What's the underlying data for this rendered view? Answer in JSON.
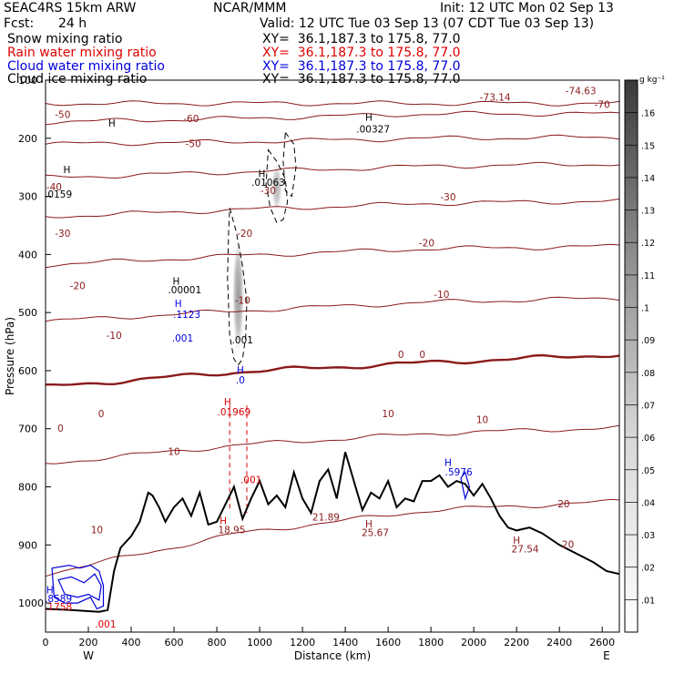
{
  "header": {
    "model": "SEAC4RS 15km ARW",
    "center": "NCAR/MMM",
    "init": "Init: 12 UTC Mon 02 Sep 13",
    "fcst_label": "Fcst:",
    "fcst_value": "24 h",
    "valid": "Valid: 12 UTC Tue 03 Sep 13 (07 CDT Tue 03 Sep 13)"
  },
  "legend": [
    {
      "name": "Snow mixing ratio",
      "xy": "XY=  36.1,187.3 to 175.8, 77.0",
      "color": "#000000"
    },
    {
      "name": "Rain water mixing ratio",
      "xy": "XY=  36.1,187.3 to 175.8, 77.0",
      "color": "#dd0000"
    },
    {
      "name": "Cloud water mixing ratio",
      "xy": "XY=  36.1,187.3 to 175.8, 77.0",
      "color": "#0000dd"
    },
    {
      "name": "Cloud ice mixing ratio",
      "xy": "XY=  36.1,187.3 to 175.8, 77.0",
      "color": "#000000"
    }
  ],
  "chart_data": {
    "type": "contour",
    "xlabel": "Distance (km)",
    "ylabel": "Pressure (hPa)",
    "xlim": [
      0,
      2680
    ],
    "ylim": [
      1050,
      100
    ],
    "x_ticks": [
      0,
      200,
      400,
      600,
      800,
      1000,
      1200,
      1400,
      1600,
      1800,
      2000,
      2200,
      2400,
      2600
    ],
    "y_ticks": [
      200,
      300,
      400,
      500,
      600,
      700,
      800,
      900,
      1000
    ],
    "y_tick_labels": [
      "200",
      "300",
      "400",
      "500",
      "600",
      "700",
      "800",
      "900",
      "1000"
    ],
    "y_top_label": "100",
    "endpoints": {
      "left": "W",
      "right": "E"
    },
    "colorbar": {
      "unit": "g kg⁻¹",
      "ticks": [
        ".16",
        ".15",
        ".14",
        ".13",
        ".12",
        ".11",
        ".1",
        ".09",
        ".08",
        ".07",
        ".06",
        ".05",
        ".04",
        ".03",
        ".02",
        ".01"
      ],
      "min": 0.0,
      "max": 0.17
    },
    "temperature_levels": [
      {
        "level": -70,
        "pressure": [
          140,
          140,
          140,
          140
        ]
      },
      {
        "level": -60,
        "pressure": [
          172,
          166,
          158,
          158
        ]
      },
      {
        "level": -50,
        "pressure": [
          210,
          206,
          200,
          198
        ]
      },
      {
        "level": -40,
        "pressure": [
          268,
          258,
          248,
          244
        ]
      },
      {
        "level": -30,
        "pressure": [
          335,
          323,
          312,
          308
        ]
      },
      {
        "level": -20,
        "pressure": [
          418,
          402,
          390,
          386
        ]
      },
      {
        "level": -10,
        "pressure": [
          515,
          497,
          482,
          475
        ]
      },
      {
        "level": 0,
        "pressure": [
          628,
          602,
          586,
          572
        ]
      },
      {
        "level": 10,
        "pressure": [
          760,
          728,
          708,
          698
        ]
      },
      {
        "level": 20,
        "pressure": [
          950,
          880,
          840,
          825
        ]
      }
    ],
    "temperature_profile_x": [
      0,
      900,
      1800,
      2680
    ],
    "terrain": {
      "x": [
        0,
        120,
        200,
        250,
        290,
        300,
        320,
        350,
        400,
        440,
        480,
        500,
        530,
        560,
        600,
        640,
        680,
        720,
        760,
        800,
        840,
        880,
        920,
        960,
        1000,
        1040,
        1080,
        1120,
        1160,
        1200,
        1240,
        1280,
        1320,
        1360,
        1400,
        1440,
        1480,
        1520,
        1560,
        1600,
        1640,
        1680,
        1720,
        1760,
        1800,
        1840,
        1880,
        1920,
        1960,
        2000,
        2040,
        2080,
        2120,
        2160,
        2200,
        2260,
        2320,
        2400,
        2480,
        2560,
        2620,
        2680
      ],
      "y": [
        1010,
        1012,
        1014,
        1015,
        1012,
        990,
        945,
        905,
        885,
        860,
        810,
        815,
        835,
        860,
        835,
        820,
        850,
        810,
        865,
        860,
        830,
        800,
        855,
        820,
        790,
        830,
        815,
        835,
        775,
        820,
        845,
        790,
        770,
        820,
        740,
        790,
        840,
        810,
        820,
        790,
        835,
        820,
        825,
        790,
        790,
        780,
        800,
        790,
        795,
        815,
        795,
        820,
        850,
        870,
        875,
        870,
        880,
        900,
        915,
        930,
        945,
        950
      ]
    },
    "snow_contours": [
      {
        "label": ".001",
        "x": [
          860,
          890,
          920,
          940,
          935,
          920,
          900,
          880,
          860,
          850,
          855,
          860
        ],
        "y": [
          320,
          360,
          420,
          480,
          540,
          580,
          590,
          580,
          540,
          440,
          360,
          320
        ]
      },
      {
        "label": ".001",
        "x": [
          1040,
          1080,
          1120,
          1130,
          1110,
          1080,
          1050,
          1030,
          1040
        ],
        "y": [
          220,
          240,
          270,
          310,
          340,
          345,
          320,
          280,
          220
        ]
      }
    ],
    "ice_contours": [
      {
        "label": ".001",
        "x": [
          1120,
          1160,
          1170,
          1150,
          1120,
          1110,
          1120
        ],
        "y": [
          190,
          210,
          250,
          300,
          290,
          240,
          190
        ]
      }
    ],
    "rain_lines": [
      {
        "x": [
          860,
          860
        ],
        "y": [
          660,
          840
        ]
      },
      {
        "x": [
          940,
          940
        ],
        "y": [
          660,
          845
        ]
      }
    ],
    "cloud_contours": [
      {
        "x": [
          30,
          110,
          160,
          210,
          250,
          270,
          270,
          240,
          210,
          150,
          90,
          40,
          30
        ],
        "y": [
          940,
          935,
          940,
          935,
          945,
          970,
          1005,
          1010,
          990,
          1000,
          1000,
          990,
          940
        ]
      },
      {
        "x": [
          60,
          120,
          180,
          230,
          260,
          250,
          200,
          150,
          90,
          60
        ],
        "y": [
          960,
          955,
          965,
          950,
          970,
          995,
          985,
          990,
          985,
          960
        ]
      },
      {
        "x": [
          1940,
          1960,
          1980,
          1960,
          1940
        ],
        "y": [
          785,
          775,
          800,
          820,
          785
        ]
      }
    ],
    "cloud_shade": [
      {
        "x": 900,
        "p": 470,
        "rx": 30,
        "rp": 110,
        "intensity": 0.6
      },
      {
        "x": 1080,
        "p": 285,
        "rx": 28,
        "rp": 45,
        "intensity": 0.45
      }
    ],
    "annotations": [
      {
        "text": "-70",
        "x": 2600,
        "p": 148,
        "color": "#8b1a1a"
      },
      {
        "text": "-73.14",
        "x": 2100,
        "p": 135,
        "color": "#8b1a1a"
      },
      {
        "text": "-74.63",
        "x": 2500,
        "p": 124,
        "color": "#8b1a1a"
      },
      {
        "text": "-50",
        "x": 80,
        "p": 165,
        "color": "#8b1a1a"
      },
      {
        "text": "-60",
        "x": 680,
        "p": 172,
        "color": "#8b1a1a"
      },
      {
        "text": "-50",
        "x": 690,
        "p": 215,
        "color": "#8b1a1a"
      },
      {
        "text": "-40",
        "x": 40,
        "p": 290,
        "color": "#8b1a1a"
      },
      {
        "text": "-30",
        "x": 1040,
        "p": 296,
        "color": "#8b1a1a"
      },
      {
        "text": "-30",
        "x": 1880,
        "p": 307,
        "color": "#8b1a1a"
      },
      {
        "text": "-30",
        "x": 80,
        "p": 370,
        "color": "#8b1a1a"
      },
      {
        "text": "-20",
        "x": 930,
        "p": 370,
        "color": "#8b1a1a"
      },
      {
        "text": "-20",
        "x": 1780,
        "p": 386,
        "color": "#8b1a1a"
      },
      {
        "text": "-20",
        "x": 150,
        "p": 460,
        "color": "#8b1a1a"
      },
      {
        "text": "-10",
        "x": 920,
        "p": 485,
        "color": "#8b1a1a"
      },
      {
        "text": "-10",
        "x": 1850,
        "p": 475,
        "color": "#8b1a1a"
      },
      {
        "text": "-10",
        "x": 320,
        "p": 545,
        "color": "#8b1a1a"
      },
      {
        "text": "0",
        "x": 1660,
        "p": 578,
        "color": "#8b1a1a"
      },
      {
        "text": "0",
        "x": 1760,
        "p": 578,
        "color": "#8b1a1a"
      },
      {
        "text": "0",
        "x": 70,
        "p": 705,
        "color": "#8b1a1a"
      },
      {
        "text": "0",
        "x": 260,
        "p": 680,
        "color": "#8b1a1a"
      },
      {
        "text": "10",
        "x": 1600,
        "p": 680,
        "color": "#8b1a1a"
      },
      {
        "text": "10",
        "x": 2040,
        "p": 690,
        "color": "#8b1a1a"
      },
      {
        "text": "10",
        "x": 600,
        "p": 745,
        "color": "#8b1a1a"
      },
      {
        "text": "10",
        "x": 240,
        "p": 880,
        "color": "#8b1a1a"
      },
      {
        "text": "20",
        "x": 2420,
        "p": 835,
        "color": "#8b1a1a"
      },
      {
        "text": "20",
        "x": 2440,
        "p": 905,
        "color": "#8b1a1a"
      },
      {
        "text": "H",
        "x": 1510,
        "p": 170,
        "color": "#000000"
      },
      {
        "text": ".00327",
        "x": 1530,
        "p": 190,
        "color": "#000000"
      },
      {
        "text": "H",
        "x": 1010,
        "p": 267,
        "color": "#000000"
      },
      {
        "text": ".01063",
        "x": 1040,
        "p": 282,
        "color": "#000000"
      },
      {
        "text": "H",
        "x": 610,
        "p": 452,
        "color": "#000000"
      },
      {
        "text": ".00001",
        "x": 650,
        "p": 467,
        "color": "#000000"
      },
      {
        "text": "H",
        "x": 620,
        "p": 490,
        "color": "#0000dd"
      },
      {
        "text": ".1123",
        "x": 660,
        "p": 509,
        "color": "#0000dd"
      },
      {
        "text": ".001",
        "x": 640,
        "p": 550,
        "color": "#0000dd"
      },
      {
        "text": ".001",
        "x": 920,
        "p": 553,
        "color": "#000000"
      },
      {
        "text": "H",
        "x": 910,
        "p": 605,
        "color": "#0000dd"
      },
      {
        "text": ".0",
        "x": 910,
        "p": 622,
        "color": "#0000dd"
      },
      {
        "text": "H",
        "x": 850,
        "p": 660,
        "color": "#dd0000"
      },
      {
        "text": ".01969",
        "x": 880,
        "p": 677,
        "color": "#dd0000"
      },
      {
        "text": ".001",
        "x": 960,
        "p": 794,
        "color": "#dd0000"
      },
      {
        "text": "H",
        "x": 830,
        "p": 864,
        "color": "#dd0000"
      },
      {
        "text": "18.95",
        "x": 870,
        "p": 880,
        "color": "#8b1a1a"
      },
      {
        "text": "21.89",
        "x": 1310,
        "p": 858,
        "color": "#8b1a1a"
      },
      {
        "text": "H",
        "x": 1510,
        "p": 870,
        "color": "#8b1a1a"
      },
      {
        "text": "25.67",
        "x": 1540,
        "p": 885,
        "color": "#8b1a1a"
      },
      {
        "text": "H",
        "x": 1880,
        "p": 764,
        "color": "#0000dd"
      },
      {
        "text": ".5976",
        "x": 1930,
        "p": 780,
        "color": "#0000dd"
      },
      {
        "text": "H",
        "x": 2200,
        "p": 898,
        "color": "#8b1a1a"
      },
      {
        "text": "27.54",
        "x": 2240,
        "p": 913,
        "color": "#8b1a1a"
      },
      {
        "text": "H",
        "x": 20,
        "p": 983,
        "color": "#0000dd"
      },
      {
        "text": ".8589",
        "x": 60,
        "p": 998,
        "color": "#0000dd"
      },
      {
        "text": ".1758",
        "x": 60,
        "p": 1012,
        "color": "#dd0000"
      },
      {
        "text": ".001",
        "x": 280,
        "p": 1042,
        "color": "#dd0000"
      },
      {
        "text": "H",
        "x": 310,
        "p": 180,
        "color": "#000000"
      },
      {
        "text": "H",
        "x": 100,
        "p": 260,
        "color": "#000000"
      },
      {
        "text": ".0159",
        "x": 60,
        "p": 302,
        "color": "#000000"
      }
    ]
  }
}
